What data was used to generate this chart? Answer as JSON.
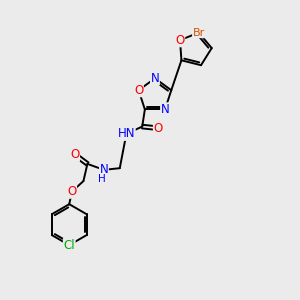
{
  "bg_color": "#ebebeb",
  "atom_colors": {
    "N": "#0000ff",
    "O": "#ff0000",
    "Br": "#cc5500",
    "Cl": "#00aa00"
  },
  "font_size": 8.5,
  "bond_lw": 1.4
}
